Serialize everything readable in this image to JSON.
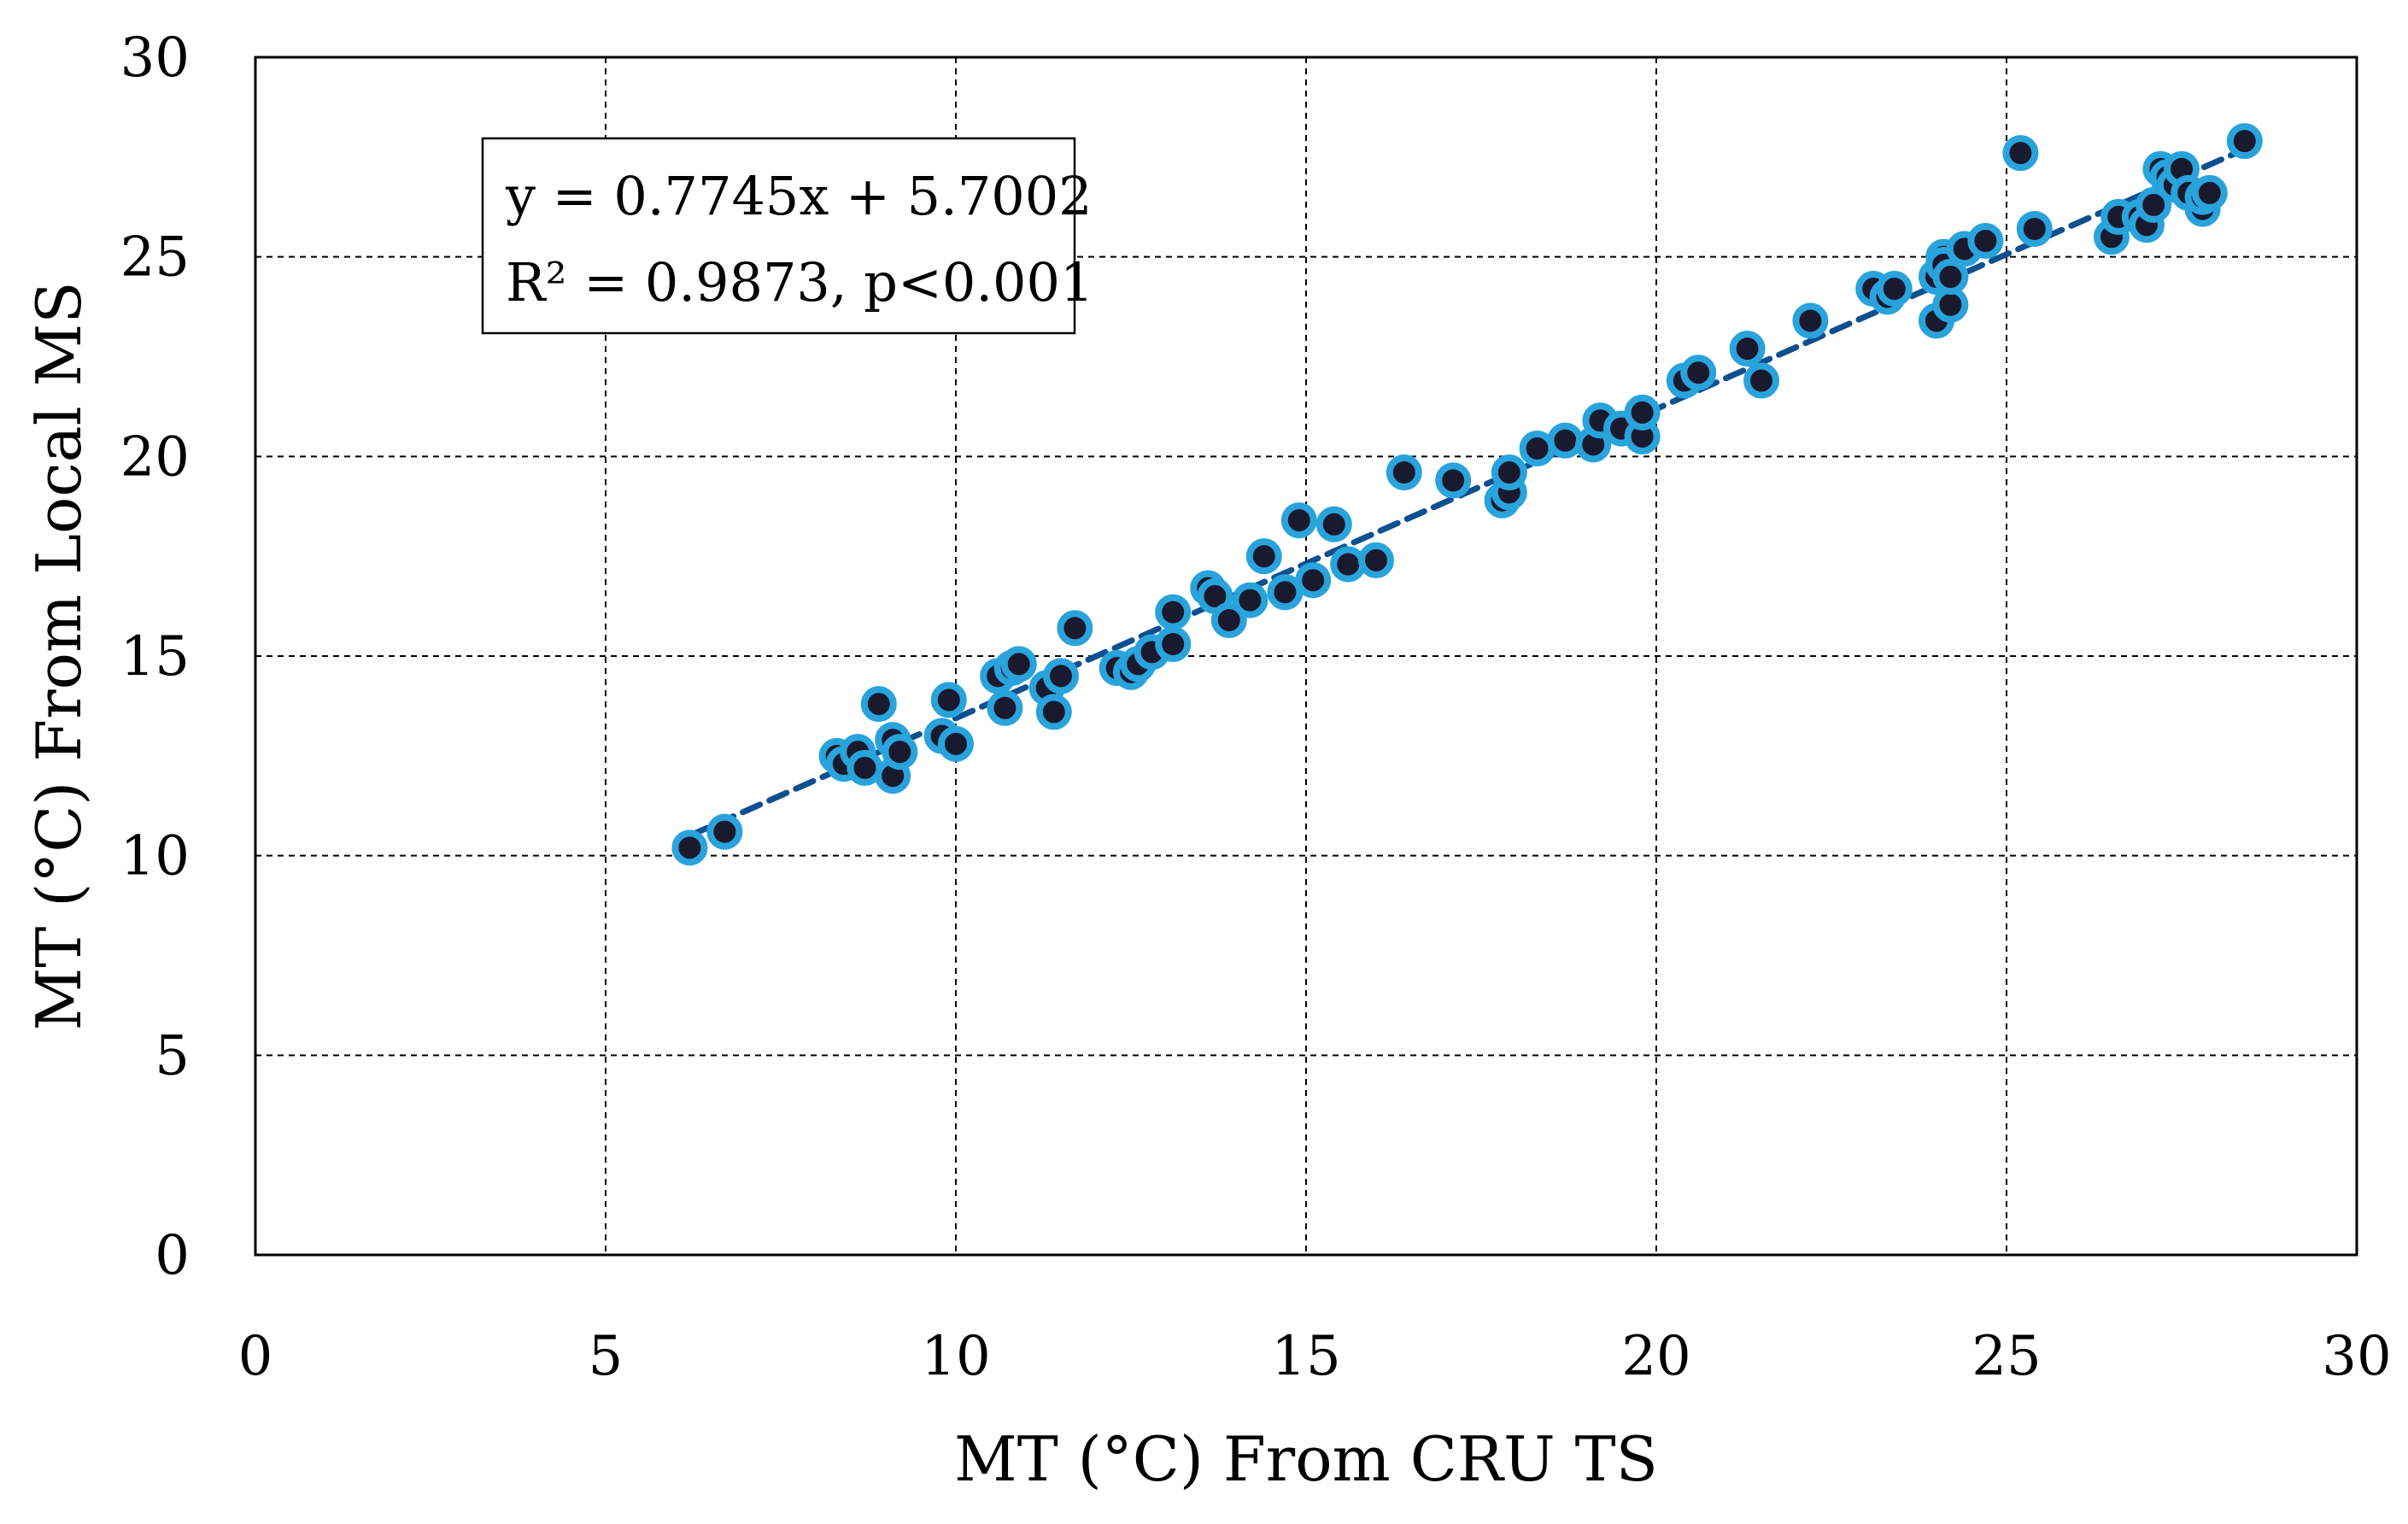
{
  "chart_data": {
    "type": "scatter",
    "title": "",
    "xlabel": "MT (°C) From CRU TS",
    "ylabel": "MT (°C)  From Local MS",
    "xlim": [
      0,
      30
    ],
    "ylim": [
      0,
      30
    ],
    "xticks": [
      0,
      5,
      10,
      15,
      20,
      25,
      30
    ],
    "yticks": [
      0,
      5,
      10,
      15,
      20,
      25,
      30
    ],
    "grid": true,
    "legend": "none",
    "annotation": {
      "line1": "y = 0.7745x + 5.7002",
      "line2": "R² = 0.9873, p<0.001"
    },
    "trendline": {
      "slope": 0.7745,
      "intercept": 5.7002,
      "x_range": [
        6.2,
        28.4
      ]
    },
    "colors": {
      "marker_fill": "#1a1a2e",
      "marker_outline": "#29a3dc",
      "trendline": "#0e4f8f",
      "grid": "#000000"
    },
    "points": [
      {
        "x": 6.2,
        "y": 10.2
      },
      {
        "x": 6.7,
        "y": 10.6
      },
      {
        "x": 8.3,
        "y": 12.5
      },
      {
        "x": 8.4,
        "y": 12.3
      },
      {
        "x": 8.6,
        "y": 12.6
      },
      {
        "x": 8.7,
        "y": 12.2
      },
      {
        "x": 8.9,
        "y": 13.8
      },
      {
        "x": 9.1,
        "y": 12.9
      },
      {
        "x": 9.1,
        "y": 12.0
      },
      {
        "x": 9.2,
        "y": 12.6
      },
      {
        "x": 9.8,
        "y": 13.0
      },
      {
        "x": 9.9,
        "y": 13.9
      },
      {
        "x": 10.0,
        "y": 12.8
      },
      {
        "x": 10.6,
        "y": 14.5
      },
      {
        "x": 10.7,
        "y": 13.7
      },
      {
        "x": 10.8,
        "y": 14.7
      },
      {
        "x": 10.9,
        "y": 14.8
      },
      {
        "x": 11.3,
        "y": 14.2
      },
      {
        "x": 11.4,
        "y": 13.6
      },
      {
        "x": 11.5,
        "y": 14.5
      },
      {
        "x": 11.7,
        "y": 15.7
      },
      {
        "x": 12.3,
        "y": 14.7
      },
      {
        "x": 12.5,
        "y": 14.6
      },
      {
        "x": 12.6,
        "y": 14.8
      },
      {
        "x": 12.8,
        "y": 15.1
      },
      {
        "x": 13.1,
        "y": 16.1
      },
      {
        "x": 13.1,
        "y": 15.3
      },
      {
        "x": 13.6,
        "y": 16.7
      },
      {
        "x": 13.7,
        "y": 16.5
      },
      {
        "x": 13.9,
        "y": 15.9
      },
      {
        "x": 14.2,
        "y": 16.4
      },
      {
        "x": 14.4,
        "y": 17.5
      },
      {
        "x": 14.7,
        "y": 16.6
      },
      {
        "x": 14.9,
        "y": 18.4
      },
      {
        "x": 15.1,
        "y": 16.9
      },
      {
        "x": 15.4,
        "y": 18.3
      },
      {
        "x": 15.6,
        "y": 17.3
      },
      {
        "x": 16.0,
        "y": 17.4
      },
      {
        "x": 16.4,
        "y": 19.6
      },
      {
        "x": 17.1,
        "y": 19.4
      },
      {
        "x": 17.8,
        "y": 18.9
      },
      {
        "x": 17.9,
        "y": 19.1
      },
      {
        "x": 17.9,
        "y": 19.6
      },
      {
        "x": 18.3,
        "y": 20.2
      },
      {
        "x": 18.7,
        "y": 20.4
      },
      {
        "x": 19.1,
        "y": 20.3
      },
      {
        "x": 19.2,
        "y": 20.9
      },
      {
        "x": 19.5,
        "y": 20.7
      },
      {
        "x": 19.8,
        "y": 20.5
      },
      {
        "x": 19.8,
        "y": 21.1
      },
      {
        "x": 20.4,
        "y": 21.9
      },
      {
        "x": 20.6,
        "y": 22.1
      },
      {
        "x": 21.3,
        "y": 22.7
      },
      {
        "x": 21.5,
        "y": 21.9
      },
      {
        "x": 22.2,
        "y": 23.4
      },
      {
        "x": 23.1,
        "y": 24.2
      },
      {
        "x": 23.3,
        "y": 24.0
      },
      {
        "x": 23.4,
        "y": 24.2
      },
      {
        "x": 24.0,
        "y": 24.5
      },
      {
        "x": 24.0,
        "y": 23.4
      },
      {
        "x": 24.1,
        "y": 25.0
      },
      {
        "x": 24.1,
        "y": 24.8
      },
      {
        "x": 24.2,
        "y": 23.8
      },
      {
        "x": 24.2,
        "y": 24.5
      },
      {
        "x": 24.4,
        "y": 25.2
      },
      {
        "x": 24.7,
        "y": 25.4
      },
      {
        "x": 25.2,
        "y": 27.6
      },
      {
        "x": 25.4,
        "y": 25.7
      },
      {
        "x": 26.5,
        "y": 25.5
      },
      {
        "x": 26.6,
        "y": 26.0
      },
      {
        "x": 26.9,
        "y": 26.0
      },
      {
        "x": 27.0,
        "y": 25.8
      },
      {
        "x": 27.1,
        "y": 26.3
      },
      {
        "x": 27.2,
        "y": 27.2
      },
      {
        "x": 27.3,
        "y": 27.0
      },
      {
        "x": 27.4,
        "y": 26.8
      },
      {
        "x": 27.5,
        "y": 27.2
      },
      {
        "x": 27.6,
        "y": 26.6
      },
      {
        "x": 27.8,
        "y": 26.2
      },
      {
        "x": 27.8,
        "y": 26.5
      },
      {
        "x": 27.9,
        "y": 26.6
      },
      {
        "x": 28.4,
        "y": 27.9
      }
    ]
  }
}
